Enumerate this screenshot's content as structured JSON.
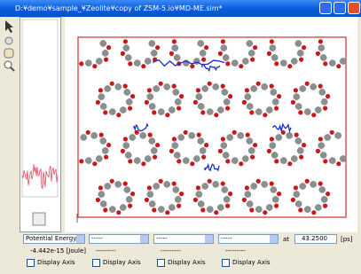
{
  "window": {
    "title": "D:¥demo¥sample_¥Zeolite¥copy of ZSM-5.io¥MD-ME.sim*"
  },
  "controls": {
    "selectors": [
      "Potential Energy",
      "-----",
      "-----",
      "-----"
    ],
    "at_label": "at",
    "time": "43.2500",
    "time_unit": "[ps]",
    "readouts": [
      "-4.442e-15 [Joule]",
      "---------",
      "---------",
      "---------"
    ],
    "checkboxes": [
      "Display Axis",
      "Display Axis",
      "Display Axis",
      "Display Axis"
    ]
  }
}
